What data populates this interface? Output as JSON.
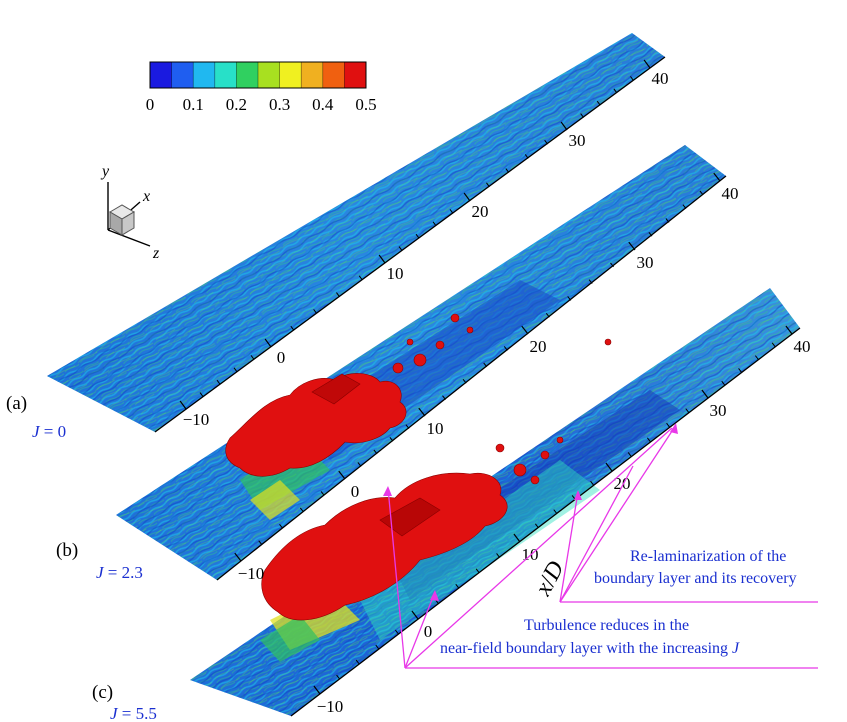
{
  "colorbar": {
    "ticks": [
      "0",
      "0.1",
      "0.2",
      "0.3",
      "0.4",
      "0.5"
    ],
    "min": 0,
    "max": 0.5,
    "colors": [
      "#1a1ae0",
      "#1f5ef0",
      "#20b8f0",
      "#28e0c8",
      "#30d060",
      "#a8e020",
      "#f0f020",
      "#f0b020",
      "#f06010",
      "#e01010"
    ]
  },
  "orientation": {
    "y": "y",
    "x": "x",
    "z": "z"
  },
  "panels": [
    {
      "id": "a",
      "label": "(a)",
      "jtext": "J = 0",
      "jsym": "J",
      "jval": "0",
      "ticks": [
        "−10",
        "0",
        "10",
        "20",
        "30",
        "40"
      ]
    },
    {
      "id": "b",
      "label": "(b)",
      "jtext": "J = 2.3",
      "jsym": "J",
      "jval": "2.3",
      "ticks": [
        "−10",
        "0",
        "10",
        "20",
        "30",
        "40"
      ]
    },
    {
      "id": "c",
      "label": "(c)",
      "jtext": "J = 5.5",
      "jsym": "J",
      "jval": "5.5",
      "ticks": [
        "−10",
        "0",
        "10",
        "20",
        "30",
        "40"
      ]
    }
  ],
  "axis_label": {
    "x": "x",
    "slash": "/",
    "d": "D"
  },
  "annotations": {
    "relam": {
      "line1": "Re-laminarization of the",
      "line2": "boundary layer and its recovery"
    },
    "turb": {
      "line1": "Turbulence reduces in the",
      "line2_prefix": "near-field boundary layer with the increasing ",
      "line2_sym": "J"
    }
  },
  "colors": {
    "annotation": "#1a2fd0",
    "pointer": "#e838e8",
    "jet": "#e01010",
    "surface": "#2a72d8"
  }
}
